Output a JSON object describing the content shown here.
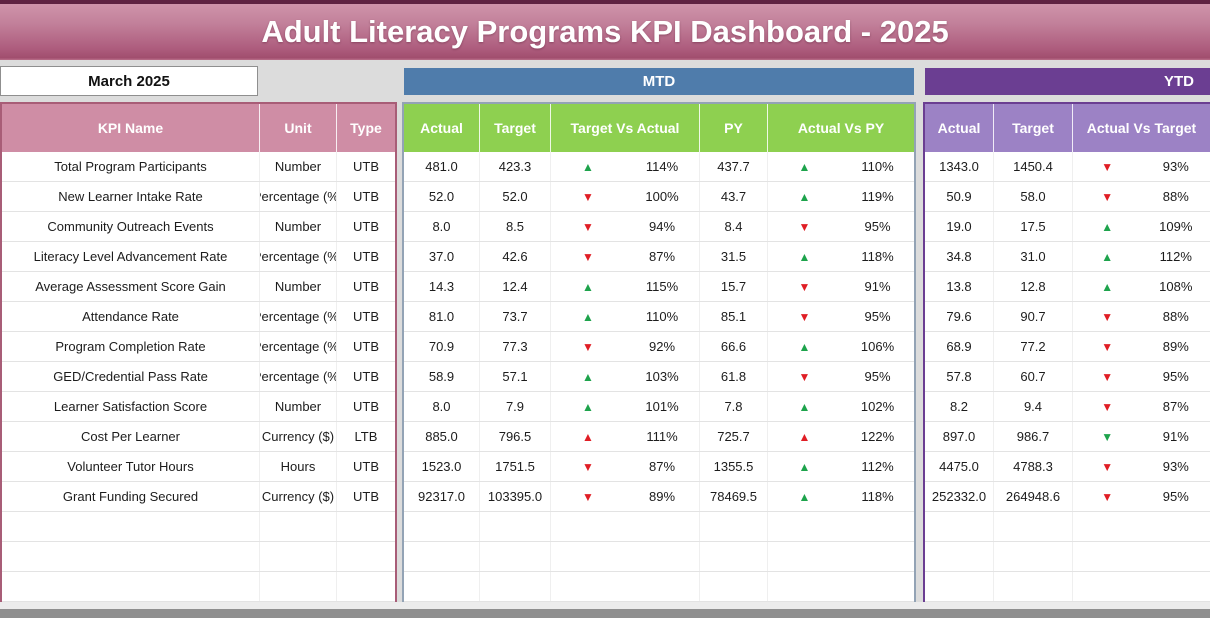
{
  "title": "Adult Literacy Programs KPI Dashboard - 2025",
  "month_selector": {
    "value": "March 2025"
  },
  "sections": {
    "mtd_label": "MTD",
    "ytd_label": "YTD"
  },
  "table": {
    "kpi_header": {
      "name": "KPI Name",
      "unit": "Unit",
      "type": "Type"
    },
    "mtd_columns": [
      "Actual",
      "Target",
      "Target Vs Actual",
      "PY",
      "Actual Vs PY"
    ],
    "ytd_columns": [
      "Actual",
      "Target",
      "Actual Vs Target"
    ],
    "rows": [
      {
        "kpi": "Total Program Participants",
        "unit": "Number",
        "type": "UTB",
        "mtd": {
          "actual": "481.0",
          "target": "423.3",
          "tva_dir": "up",
          "tva_color": "green",
          "tva": "114%",
          "py": "437.7",
          "avp_dir": "up",
          "avp_color": "green",
          "avp": "110%"
        },
        "ytd": {
          "actual": "1343.0",
          "target": "1450.4",
          "avt_dir": "down",
          "avt_color": "red",
          "avt": "93%"
        }
      },
      {
        "kpi": "New Learner Intake Rate",
        "unit": "Percentage (%)",
        "type": "UTB",
        "mtd": {
          "actual": "52.0",
          "target": "52.0",
          "tva_dir": "down",
          "tva_color": "red",
          "tva": "100%",
          "py": "43.7",
          "avp_dir": "up",
          "avp_color": "green",
          "avp": "119%"
        },
        "ytd": {
          "actual": "50.9",
          "target": "58.0",
          "avt_dir": "down",
          "avt_color": "red",
          "avt": "88%"
        }
      },
      {
        "kpi": "Community Outreach Events",
        "unit": "Number",
        "type": "UTB",
        "mtd": {
          "actual": "8.0",
          "target": "8.5",
          "tva_dir": "down",
          "tva_color": "red",
          "tva": "94%",
          "py": "8.4",
          "avp_dir": "down",
          "avp_color": "red",
          "avp": "95%"
        },
        "ytd": {
          "actual": "19.0",
          "target": "17.5",
          "avt_dir": "up",
          "avt_color": "green",
          "avt": "109%"
        }
      },
      {
        "kpi": "Literacy Level Advancement Rate",
        "unit": "Percentage (%)",
        "type": "UTB",
        "mtd": {
          "actual": "37.0",
          "target": "42.6",
          "tva_dir": "down",
          "tva_color": "red",
          "tva": "87%",
          "py": "31.5",
          "avp_dir": "up",
          "avp_color": "green",
          "avp": "118%"
        },
        "ytd": {
          "actual": "34.8",
          "target": "31.0",
          "avt_dir": "up",
          "avt_color": "green",
          "avt": "112%"
        }
      },
      {
        "kpi": "Average Assessment Score Gain",
        "unit": "Number",
        "type": "UTB",
        "mtd": {
          "actual": "14.3",
          "target": "12.4",
          "tva_dir": "up",
          "tva_color": "green",
          "tva": "115%",
          "py": "15.7",
          "avp_dir": "down",
          "avp_color": "red",
          "avp": "91%"
        },
        "ytd": {
          "actual": "13.8",
          "target": "12.8",
          "avt_dir": "up",
          "avt_color": "green",
          "avt": "108%"
        }
      },
      {
        "kpi": "Attendance Rate",
        "unit": "Percentage (%)",
        "type": "UTB",
        "mtd": {
          "actual": "81.0",
          "target": "73.7",
          "tva_dir": "up",
          "tva_color": "green",
          "tva": "110%",
          "py": "85.1",
          "avp_dir": "down",
          "avp_color": "red",
          "avp": "95%"
        },
        "ytd": {
          "actual": "79.6",
          "target": "90.7",
          "avt_dir": "down",
          "avt_color": "red",
          "avt": "88%"
        }
      },
      {
        "kpi": "Program Completion Rate",
        "unit": "Percentage (%)",
        "type": "UTB",
        "mtd": {
          "actual": "70.9",
          "target": "77.3",
          "tva_dir": "down",
          "tva_color": "red",
          "tva": "92%",
          "py": "66.6",
          "avp_dir": "up",
          "avp_color": "green",
          "avp": "106%"
        },
        "ytd": {
          "actual": "68.9",
          "target": "77.2",
          "avt_dir": "down",
          "avt_color": "red",
          "avt": "89%"
        }
      },
      {
        "kpi": "GED/Credential Pass Rate",
        "unit": "Percentage (%)",
        "type": "UTB",
        "mtd": {
          "actual": "58.9",
          "target": "57.1",
          "tva_dir": "up",
          "tva_color": "green",
          "tva": "103%",
          "py": "61.8",
          "avp_dir": "down",
          "avp_color": "red",
          "avp": "95%"
        },
        "ytd": {
          "actual": "57.8",
          "target": "60.7",
          "avt_dir": "down",
          "avt_color": "red",
          "avt": "95%"
        }
      },
      {
        "kpi": "Learner Satisfaction Score",
        "unit": "Number",
        "type": "UTB",
        "mtd": {
          "actual": "8.0",
          "target": "7.9",
          "tva_dir": "up",
          "tva_color": "green",
          "tva": "101%",
          "py": "7.8",
          "avp_dir": "up",
          "avp_color": "green",
          "avp": "102%"
        },
        "ytd": {
          "actual": "8.2",
          "target": "9.4",
          "avt_dir": "down",
          "avt_color": "red",
          "avt": "87%"
        }
      },
      {
        "kpi": "Cost Per Learner",
        "unit": "Currency ($)",
        "type": "LTB",
        "mtd": {
          "actual": "885.0",
          "target": "796.5",
          "tva_dir": "up",
          "tva_color": "red",
          "tva": "111%",
          "py": "725.7",
          "avp_dir": "up",
          "avp_color": "red",
          "avp": "122%"
        },
        "ytd": {
          "actual": "897.0",
          "target": "986.7",
          "avt_dir": "down",
          "avt_color": "green",
          "avt": "91%"
        }
      },
      {
        "kpi": "Volunteer Tutor Hours",
        "unit": "Hours",
        "type": "UTB",
        "mtd": {
          "actual": "1523.0",
          "target": "1751.5",
          "tva_dir": "down",
          "tva_color": "red",
          "tva": "87%",
          "py": "1355.5",
          "avp_dir": "up",
          "avp_color": "green",
          "avp": "112%"
        },
        "ytd": {
          "actual": "4475.0",
          "target": "4788.3",
          "avt_dir": "down",
          "avt_color": "red",
          "avt": "93%"
        }
      },
      {
        "kpi": "Grant Funding Secured",
        "unit": "Currency ($)",
        "type": "UTB",
        "mtd": {
          "actual": "92317.0",
          "target": "103395.0",
          "tva_dir": "down",
          "tva_color": "red",
          "tva": "89%",
          "py": "78469.5",
          "avp_dir": "up",
          "avp_color": "green",
          "avp": "118%"
        },
        "ytd": {
          "actual": "252332.0",
          "target": "264948.6",
          "avt_dir": "down",
          "avt_color": "red",
          "avt": "95%"
        }
      }
    ],
    "empty_row_count": 3
  },
  "colors": {
    "title_gradient_top": "#cf94aa",
    "title_gradient_bottom": "#a14e6e",
    "mtd_band": "#4f7cab",
    "ytd_band": "#6b3e92",
    "kpi_header_bg": "#cf8da5",
    "mtd_header_bg": "#8ed050",
    "ytd_header_bg": "#9c82c5",
    "trend_up_good": "#1ea34c",
    "trend_down_bad": "#e01e25",
    "page_bg": "#dcdcdc"
  }
}
